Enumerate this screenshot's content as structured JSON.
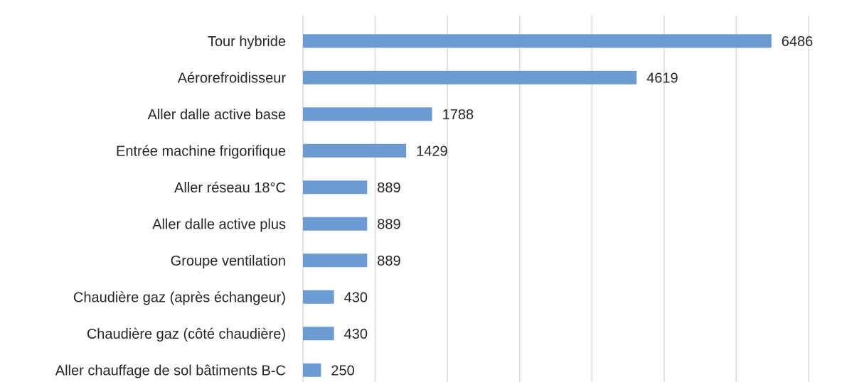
{
  "chart_data": {
    "type": "bar",
    "orientation": "horizontal",
    "categories": [
      "Tour hybride",
      "Aérorefroidisseur",
      "Aller dalle active base",
      "Entrée machine frigorifique",
      "Aller réseau  18°C",
      "Aller dalle active plus",
      "Groupe ventilation",
      "Chaudière gaz (après échangeur)",
      "Chaudière gaz (côté chaudière)",
      "Aller chauffage de sol bâtiments B-C"
    ],
    "values": [
      6486,
      4619,
      1788,
      1429,
      889,
      889,
      889,
      430,
      430,
      250
    ],
    "data_labels": [
      "6486",
      "4619",
      "1788",
      "1429",
      "889",
      "889",
      "889",
      "430",
      "430",
      "250"
    ],
    "xlim": [
      0,
      7000
    ],
    "x_gridlines": [
      0,
      1000,
      2000,
      3000,
      4000,
      5000,
      6000,
      7000
    ],
    "grid": true,
    "legend": "none",
    "bar_color": "#6b9bd1",
    "title": "",
    "xlabel": "",
    "ylabel": ""
  }
}
